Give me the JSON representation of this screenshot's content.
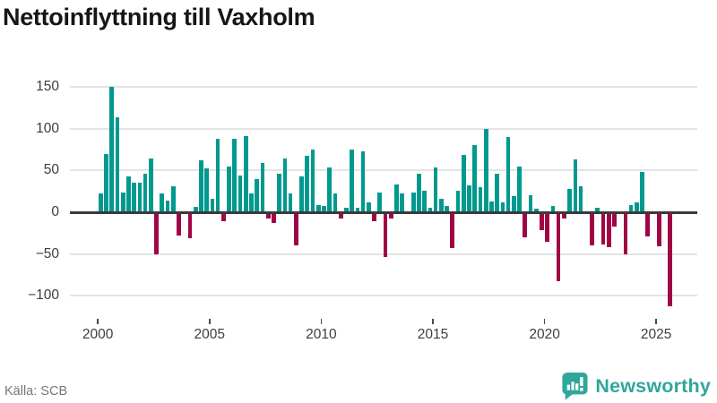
{
  "header": {
    "title": "Nettoinflyttning till Vaxholm"
  },
  "footer": {
    "source": "Källa: SCB",
    "brand": "Newsworthy"
  },
  "chart_data": {
    "type": "bar",
    "title": "Nettoinflyttning till Vaxholm",
    "frequency": "quarterly",
    "x_start": "2000 Q1",
    "x_end": "2025 Q3",
    "x_tick_labels": [
      "2000",
      "2005",
      "2010",
      "2015",
      "2020",
      "2025"
    ],
    "y_ticks": [
      150,
      100,
      50,
      0,
      -50,
      -100
    ],
    "y_tick_labels": [
      "150",
      "100",
      "50",
      "0",
      "−50",
      "−100"
    ],
    "ylim": [
      -120,
      160
    ],
    "grid": "horizontal",
    "legend": "none",
    "colors": {
      "positive": "#00998F",
      "negative": "#A00545"
    },
    "series": [
      {
        "name": "Nettoinflyttning",
        "values": [
          22,
          70,
          150,
          114,
          24,
          43,
          35,
          35,
          46,
          64,
          -50,
          23,
          14,
          31,
          -28,
          0,
          -31,
          6,
          62,
          52,
          16,
          88,
          -11,
          55,
          88,
          44,
          91,
          22,
          40,
          59,
          -8,
          -13,
          46,
          64,
          22,
          -40,
          43,
          67,
          75,
          9,
          7,
          54,
          22,
          -7,
          5,
          75,
          5,
          73,
          12,
          -11,
          24,
          -54,
          -7,
          33,
          22,
          0,
          24,
          46,
          26,
          5,
          54,
          16,
          8,
          -43,
          26,
          69,
          32,
          80,
          30,
          100,
          13,
          46,
          12,
          90,
          19,
          55,
          -30,
          20,
          4,
          -21,
          -35,
          7,
          -83,
          -8,
          28,
          63,
          31,
          0,
          -40,
          5,
          -39,
          -42,
          -17,
          0,
          -50,
          9,
          12,
          48,
          -29,
          0,
          -41,
          0,
          -113
        ]
      }
    ]
  }
}
